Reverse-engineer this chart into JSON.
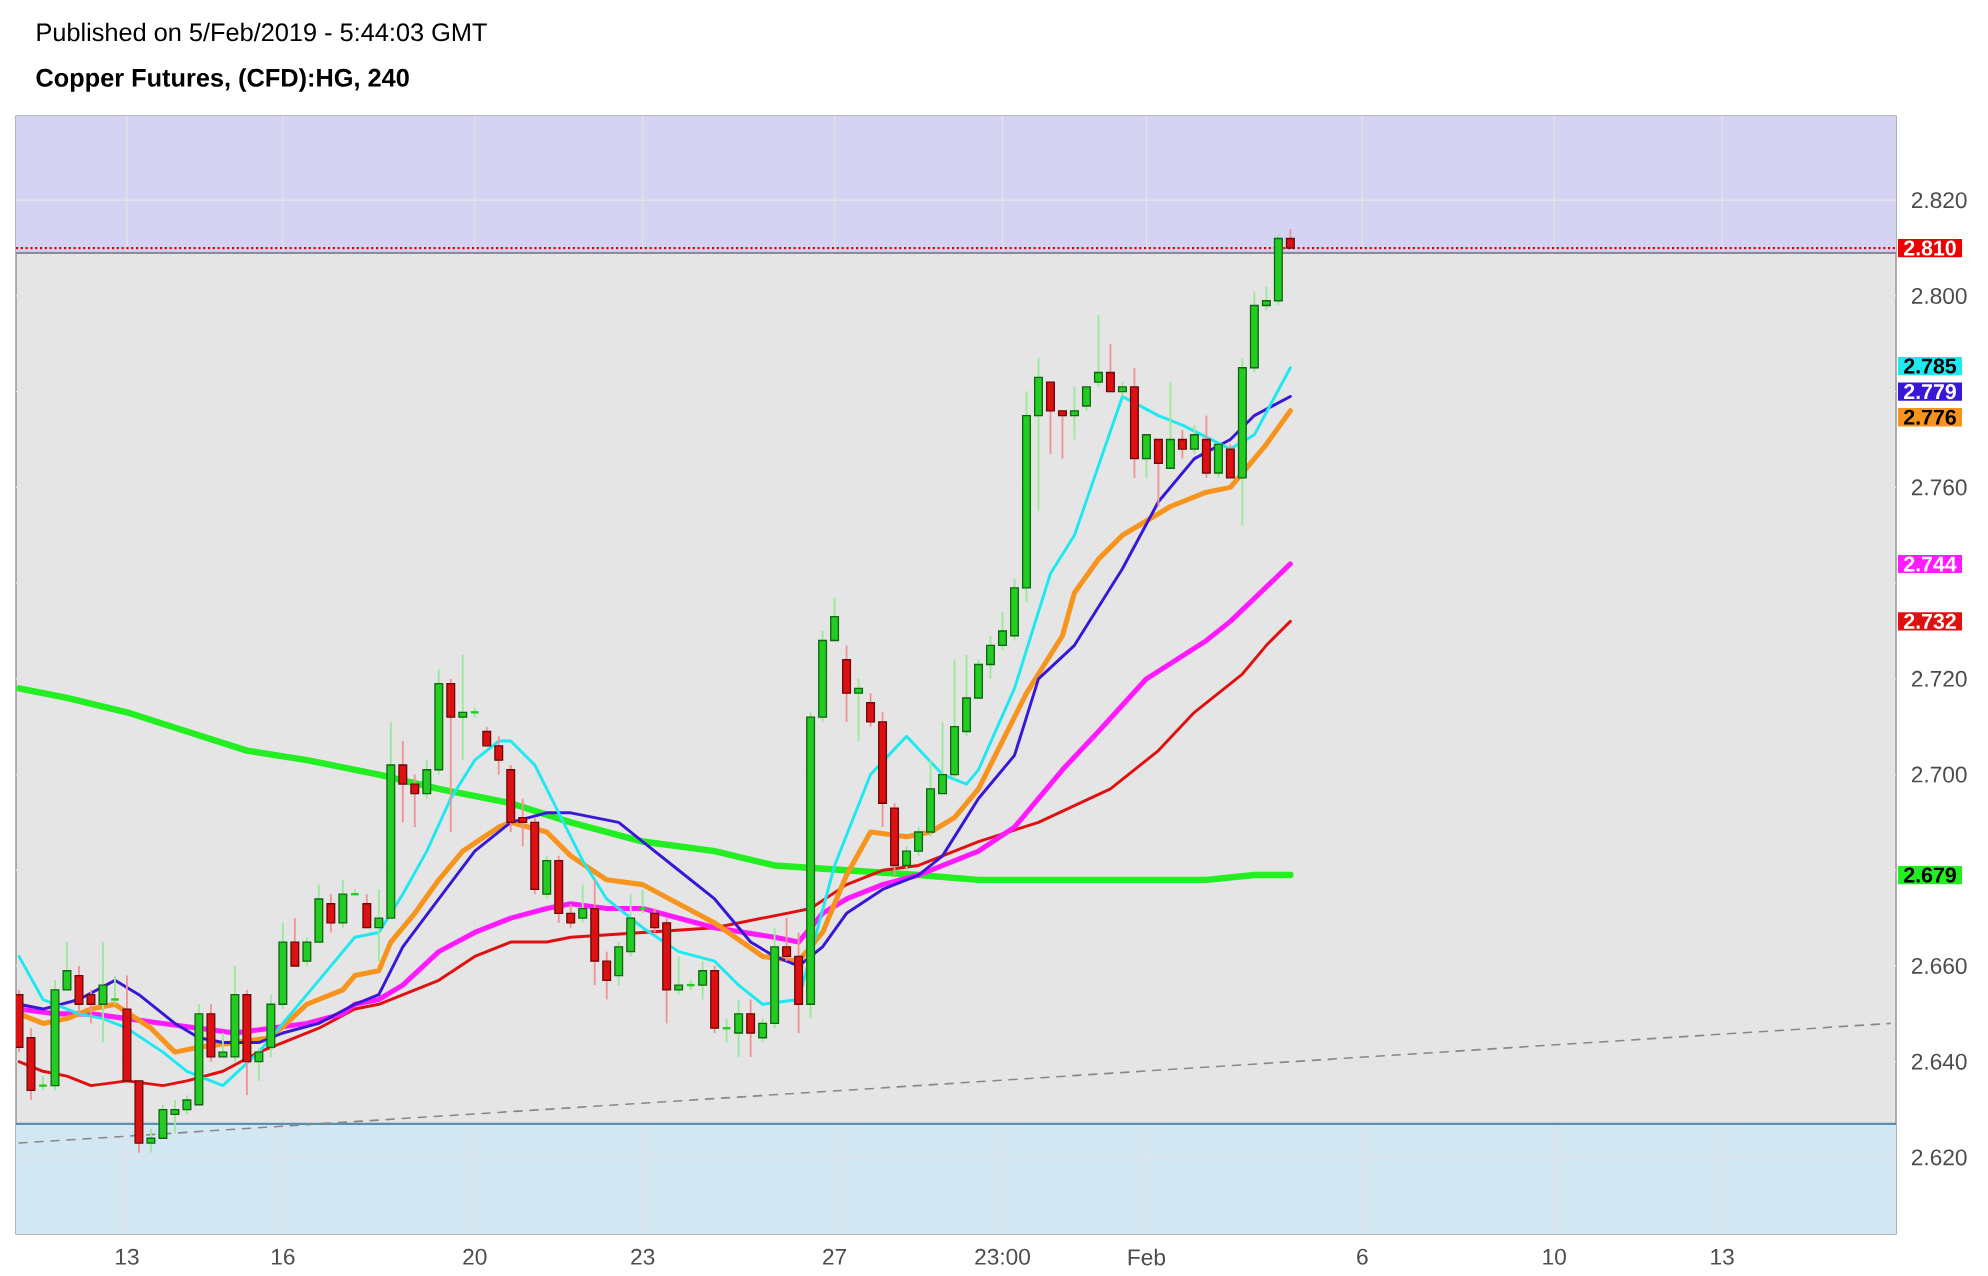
{
  "chart_data": {
    "type": "candlestick",
    "title": "Copper Futures, (CFD):HG, 240",
    "subtitle": "Published on 5/Feb/2019 - 5:44:03 GMT",
    "categories": [
      null,
      null,
      null,
      null,
      null,
      null,
      null,
      null,
      null,
      "13",
      null,
      null,
      null,
      null,
      null,
      null,
      null,
      null,
      null,
      null,
      null,
      null,
      "16",
      null,
      null,
      null,
      null,
      null,
      null,
      null,
      null,
      null,
      null,
      null,
      null,
      null,
      null,
      null,
      "20",
      null,
      null,
      null,
      null,
      null,
      null,
      null,
      null,
      null,
      null,
      null,
      null,
      null,
      "23",
      null,
      null,
      null,
      null,
      null,
      null,
      null,
      null,
      null,
      null,
      null,
      null,
      null,
      null,
      null,
      "27",
      null,
      null,
      null,
      null,
      null,
      null,
      null,
      null,
      null,
      null,
      null,
      null,
      null,
      "23:00",
      null,
      null,
      null,
      null,
      null,
      null,
      null,
      null,
      null,
      null,
      null,
      "Feb",
      null,
      null,
      null,
      null,
      null,
      null,
      null,
      null,
      null,
      null,
      null,
      null,
      null,
      null,
      null,
      null,
      null,
      "6",
      null,
      null,
      null,
      null,
      null,
      null,
      null,
      null,
      null,
      null,
      null,
      null,
      null,
      null,
      null,
      "10",
      null,
      null,
      null,
      null,
      null,
      null,
      null,
      null,
      null,
      null,
      null,
      null,
      null,
      "13",
      null,
      null,
      null,
      null,
      null,
      null,
      null,
      null,
      null,
      null,
      null,
      null,
      null,
      null
    ],
    "ohlc": [
      [
        2.654,
        2.655,
        2.642,
        2.643
      ],
      [
        2.645,
        2.647,
        2.632,
        2.634
      ],
      [
        2.635,
        2.637,
        2.634,
        2.635
      ],
      [
        2.635,
        2.657,
        2.634,
        2.655
      ],
      [
        2.655,
        2.665,
        2.655,
        2.659
      ],
      [
        2.658,
        2.66,
        2.65,
        2.652
      ],
      [
        2.654,
        2.655,
        2.648,
        2.652
      ],
      [
        2.652,
        2.665,
        2.644,
        2.656
      ],
      [
        2.653,
        2.658,
        2.652,
        2.653
      ],
      [
        2.651,
        2.658,
        2.636,
        2.636
      ],
      [
        2.636,
        2.636,
        2.621,
        2.623
      ],
      [
        2.623,
        2.626,
        2.621,
        2.624
      ],
      [
        2.624,
        2.631,
        2.624,
        2.63
      ],
      [
        2.629,
        2.632,
        2.625,
        2.63
      ],
      [
        2.63,
        2.633,
        2.629,
        2.632
      ],
      [
        2.631,
        2.652,
        2.631,
        2.65
      ],
      [
        2.65,
        2.652,
        2.64,
        2.641
      ],
      [
        2.641,
        2.646,
        2.641,
        2.642
      ],
      [
        2.641,
        2.66,
        2.64,
        2.654
      ],
      [
        2.654,
        2.655,
        2.633,
        2.64
      ],
      [
        2.64,
        2.643,
        2.636,
        2.642
      ],
      [
        2.643,
        2.654,
        2.641,
        2.652
      ],
      [
        2.652,
        2.669,
        2.651,
        2.665
      ],
      [
        2.665,
        2.67,
        2.66,
        2.66
      ],
      [
        2.661,
        2.666,
        2.66,
        2.665
      ],
      [
        2.665,
        2.677,
        2.665,
        2.674
      ],
      [
        2.673,
        2.675,
        2.667,
        2.669
      ],
      [
        2.669,
        2.678,
        2.668,
        2.675
      ],
      [
        2.675,
        2.676,
        2.675,
        2.675
      ],
      [
        2.673,
        2.675,
        2.668,
        2.668
      ],
      [
        2.668,
        2.676,
        2.661,
        2.67
      ],
      [
        2.67,
        2.711,
        2.67,
        2.702
      ],
      [
        2.702,
        2.707,
        2.69,
        2.698
      ],
      [
        2.698,
        2.7,
        2.689,
        2.696
      ],
      [
        2.696,
        2.703,
        2.695,
        2.701
      ],
      [
        2.701,
        2.722,
        2.7,
        2.719
      ],
      [
        2.719,
        2.72,
        2.688,
        2.712
      ],
      [
        2.712,
        2.725,
        2.703,
        2.713
      ],
      [
        2.713,
        2.714,
        2.712,
        2.713
      ],
      [
        2.709,
        2.71,
        2.706,
        2.706
      ],
      [
        2.706,
        2.708,
        2.7,
        2.703
      ],
      [
        2.701,
        2.702,
        2.688,
        2.69
      ],
      [
        2.691,
        2.695,
        2.685,
        2.69
      ],
      [
        2.69,
        2.691,
        2.675,
        2.676
      ],
      [
        2.675,
        2.683,
        2.674,
        2.682
      ],
      [
        2.682,
        2.683,
        2.669,
        2.671
      ],
      [
        2.671,
        2.673,
        2.668,
        2.669
      ],
      [
        2.67,
        2.677,
        2.669,
        2.672
      ],
      [
        2.672,
        2.678,
        2.656,
        2.661
      ],
      [
        2.661,
        2.663,
        2.653,
        2.657
      ],
      [
        2.658,
        2.665,
        2.656,
        2.664
      ],
      [
        2.663,
        2.675,
        2.662,
        2.67
      ],
      [
        2.672,
        2.676,
        2.671,
        2.672
      ],
      [
        2.671,
        2.672,
        2.667,
        2.668
      ],
      [
        2.669,
        2.67,
        2.648,
        2.655
      ],
      [
        2.655,
        2.662,
        2.654,
        2.656
      ],
      [
        2.656,
        2.657,
        2.655,
        2.656
      ],
      [
        2.656,
        2.661,
        2.653,
        2.659
      ],
      [
        2.659,
        2.66,
        2.646,
        2.647
      ],
      [
        2.647,
        2.649,
        2.644,
        2.647
      ],
      [
        2.646,
        2.653,
        2.641,
        2.65
      ],
      [
        2.65,
        2.653,
        2.641,
        2.646
      ],
      [
        2.645,
        2.649,
        2.644,
        2.648
      ],
      [
        2.648,
        2.668,
        2.647,
        2.664
      ],
      [
        2.664,
        2.67,
        2.661,
        2.662
      ],
      [
        2.662,
        2.667,
        2.646,
        2.652
      ],
      [
        2.652,
        2.713,
        2.649,
        2.712
      ],
      [
        2.712,
        2.73,
        2.711,
        2.728
      ],
      [
        2.728,
        2.737,
        2.728,
        2.733
      ],
      [
        2.724,
        2.727,
        2.711,
        2.717
      ],
      [
        2.717,
        2.72,
        2.707,
        2.718
      ],
      [
        2.715,
        2.717,
        2.71,
        2.711
      ],
      [
        2.711,
        2.713,
        2.689,
        2.694
      ],
      [
        2.693,
        2.694,
        2.679,
        2.681
      ],
      [
        2.681,
        2.685,
        2.68,
        2.684
      ],
      [
        2.684,
        2.689,
        2.683,
        2.688
      ],
      [
        2.688,
        2.703,
        2.687,
        2.697
      ],
      [
        2.696,
        2.711,
        2.696,
        2.7
      ],
      [
        2.7,
        2.724,
        2.699,
        2.71
      ],
      [
        2.709,
        2.725,
        2.708,
        2.716
      ],
      [
        2.716,
        2.724,
        2.716,
        2.723
      ],
      [
        2.723,
        2.729,
        2.72,
        2.727
      ],
      [
        2.727,
        2.734,
        2.726,
        2.73
      ],
      [
        2.729,
        2.741,
        2.728,
        2.739
      ],
      [
        2.739,
        2.78,
        2.736,
        2.775
      ],
      [
        2.775,
        2.787,
        2.755,
        2.783
      ],
      [
        2.782,
        2.782,
        2.767,
        2.776
      ],
      [
        2.776,
        2.776,
        2.766,
        2.775
      ],
      [
        2.775,
        2.781,
        2.77,
        2.776
      ],
      [
        2.777,
        2.781,
        2.776,
        2.781
      ],
      [
        2.782,
        2.796,
        2.781,
        2.784
      ],
      [
        2.784,
        2.79,
        2.78,
        2.78
      ],
      [
        2.78,
        2.782,
        2.779,
        2.781
      ],
      [
        2.781,
        2.785,
        2.762,
        2.766
      ],
      [
        2.766,
        2.771,
        2.762,
        2.771
      ],
      [
        2.77,
        2.77,
        2.756,
        2.765
      ],
      [
        2.764,
        2.782,
        2.764,
        2.77
      ],
      [
        2.77,
        2.772,
        2.766,
        2.768
      ],
      [
        2.768,
        2.773,
        2.767,
        2.771
      ],
      [
        2.77,
        2.775,
        2.762,
        2.763
      ],
      [
        2.763,
        2.769,
        2.762,
        2.769
      ],
      [
        2.768,
        2.769,
        2.762,
        2.762
      ],
      [
        2.762,
        2.787,
        2.752,
        2.785
      ],
      [
        2.785,
        2.801,
        2.784,
        2.798
      ],
      [
        2.798,
        2.802,
        2.797,
        2.799
      ],
      [
        2.799,
        2.813,
        2.798,
        2.812
      ],
      [
        2.812,
        2.814,
        2.81,
        2.81
      ],
      null,
      null,
      null,
      null,
      null,
      null,
      null,
      null,
      null,
      null,
      null,
      null,
      null,
      null,
      null,
      null,
      null,
      null,
      null,
      null,
      null,
      null,
      null,
      null,
      null,
      null,
      null,
      null,
      null,
      null,
      null,
      null,
      null,
      null,
      null,
      null,
      null,
      null,
      null,
      null,
      null,
      null,
      null,
      null,
      null,
      null,
      null,
      null,
      null,
      null
    ],
    "colors": [
      "#dd1111",
      "#dd1111",
      "#22cc22",
      "#22cc22",
      "#22cc22",
      "#dd1111",
      "#dd1111",
      "#22cc22",
      "#22cc22",
      "#dd1111",
      "#dd1111",
      "#22cc22",
      "#22cc22",
      "#22cc22",
      "#22cc22",
      "#22cc22",
      "#dd1111",
      "#22cc22",
      "#22cc22",
      "#dd1111",
      "#22cc22",
      "#22cc22",
      "#22cc22",
      "#dd1111",
      "#22cc22",
      "#22cc22",
      "#dd1111",
      "#22cc22",
      "#22cc22",
      "#dd1111",
      "#22cc22",
      "#22cc22",
      "#dd1111",
      "#dd1111",
      "#22cc22",
      "#22cc22",
      "#dd1111",
      "#22cc22",
      "#22cc22",
      "#dd1111",
      "#dd1111",
      "#dd1111",
      "#dd1111",
      "#dd1111",
      "#22cc22",
      "#dd1111",
      "#dd1111",
      "#22cc22",
      "#dd1111",
      "#dd1111",
      "#22cc22",
      "#22cc22",
      "#22cc22",
      "#dd1111",
      "#dd1111",
      "#22cc22",
      "#22cc22",
      "#22cc22",
      "#dd1111",
      "#22cc22",
      "#22cc22",
      "#dd1111",
      "#22cc22",
      "#22cc22",
      "#dd1111",
      "#dd1111",
      "#22cc22",
      "#22cc22",
      "#22cc22",
      "#dd1111",
      "#22cc22",
      "#dd1111",
      "#dd1111",
      "#dd1111",
      "#22cc22",
      "#22cc22",
      "#22cc22",
      "#22cc22",
      "#22cc22",
      "#22cc22",
      "#22cc22",
      "#22cc22",
      "#22cc22",
      "#22cc22",
      "#22cc22",
      "#22cc22",
      "#dd1111",
      "#dd1111",
      "#22cc22",
      "#22cc22",
      "#22cc22",
      "#dd1111",
      "#22cc22",
      "#dd1111",
      "#22cc22",
      "#dd1111",
      "#22cc22",
      "#dd1111",
      "#22cc22",
      "#dd1111",
      "#22cc22",
      "#dd1111",
      "#22cc22",
      "#22cc22",
      "#22cc22",
      "#22cc22",
      "#dd1111",
      null,
      null,
      null,
      null,
      null,
      null,
      null,
      null,
      null,
      null,
      null,
      null,
      null,
      null,
      null,
      null,
      null,
      null,
      null,
      null,
      null,
      null,
      null,
      null,
      null,
      null,
      null,
      null,
      null,
      null,
      null,
      null,
      null,
      null,
      null,
      null,
      null,
      null,
      null,
      null,
      null,
      null,
      null,
      null,
      null,
      null,
      null,
      null,
      null,
      null
    ],
    "series": [
      {
        "type": "line",
        "color": "#888888",
        "line_style": "dashed",
        "values": [
          2.623,
          null,
          null,
          null,
          null,
          null,
          null,
          null,
          null,
          null,
          null,
          null,
          null,
          null,
          null,
          null,
          null,
          null,
          null,
          null,
          null,
          null,
          null,
          null,
          null,
          null,
          null,
          null,
          null,
          null,
          null,
          null,
          null,
          null,
          null,
          null,
          null,
          null,
          null,
          null,
          null,
          null,
          null,
          null,
          null,
          null,
          null,
          null,
          null,
          null,
          null,
          null,
          null,
          null,
          null,
          null,
          null,
          null,
          null,
          null,
          null,
          null,
          null,
          null,
          null,
          null,
          null,
          null,
          null,
          null,
          null,
          null,
          null,
          null,
          null,
          null,
          null,
          null,
          null,
          null,
          null,
          null,
          null,
          null,
          null,
          null,
          null,
          null,
          null,
          null,
          null,
          null,
          null,
          null,
          null,
          null,
          null,
          null,
          null,
          null,
          null,
          null,
          null,
          null,
          null,
          null,
          null,
          null,
          null,
          null,
          null,
          null,
          null,
          null,
          null,
          null,
          null,
          null,
          null,
          null,
          null,
          null,
          null,
          null,
          null,
          null,
          null,
          null,
          null,
          null,
          null,
          null,
          null,
          null,
          null,
          null,
          null,
          null,
          null,
          null,
          null,
          null,
          null,
          null,
          null,
          null,
          null,
          null,
          null,
          null,
          null,
          null,
          null,
          null,
          null,
          null,
          2.648
        ]
      },
      {
        "type": "line",
        "color": "#22ee22",
        "values": [
          2.718,
          null,
          null,
          null,
          2.716,
          null,
          null,
          null,
          null,
          2.713,
          null,
          null,
          null,
          null,
          2.709,
          null,
          null,
          null,
          null,
          2.705,
          null,
          null,
          null,
          null,
          2.703,
          null,
          null,
          null,
          null,
          null,
          2.7,
          null,
          null,
          null,
          null,
          2.697,
          null,
          null,
          null,
          null,
          null,
          2.694,
          null,
          null,
          null,
          null,
          2.69,
          null,
          null,
          null,
          null,
          null,
          2.686,
          null,
          null,
          null,
          null,
          null,
          2.684,
          null,
          null,
          null,
          null,
          2.681,
          null,
          null,
          null,
          null,
          null,
          2.68,
          null,
          null,
          null,
          null,
          null,
          2.679,
          null,
          null,
          null,
          null,
          2.678,
          null,
          null,
          null,
          null,
          null,
          null,
          2.678,
          null,
          null,
          null,
          null,
          null,
          null,
          2.678,
          null,
          null,
          null,
          null,
          2.678,
          null,
          null,
          null,
          2.679,
          null,
          null,
          2.679,
          null,
          null,
          null,
          null,
          null,
          null,
          null,
          null,
          null,
          null,
          null,
          null,
          null,
          null,
          null,
          null,
          null,
          null,
          null,
          null,
          null,
          null,
          null,
          null,
          null,
          null,
          null,
          null,
          null,
          null,
          null,
          null,
          null,
          null,
          null,
          null,
          null,
          null,
          null,
          null,
          null,
          null,
          null,
          null,
          null,
          null,
          null,
          null,
          null,
          null
        ]
      },
      {
        "type": "line",
        "color": "#e01010",
        "values": [
          2.64,
          null,
          2.638,
          null,
          2.637,
          null,
          2.635,
          null,
          null,
          2.636,
          null,
          null,
          2.635,
          null,
          2.636,
          null,
          null,
          2.638,
          null,
          null,
          2.642,
          null,
          2.644,
          null,
          null,
          2.647,
          null,
          null,
          2.651,
          null,
          2.652,
          null,
          null,
          null,
          null,
          2.657,
          null,
          null,
          2.662,
          null,
          null,
          2.665,
          null,
          null,
          2.665,
          null,
          2.666,
          null,
          null,
          null,
          null,
          null,
          2.667,
          null,
          null,
          null,
          null,
          null,
          2.668,
          null,
          null,
          null,
          null,
          null,
          2.671,
          null,
          2.672,
          null,
          null,
          2.677,
          null,
          null,
          2.68,
          null,
          null,
          2.681,
          null,
          null,
          null,
          null,
          2.686,
          null,
          null,
          null,
          null,
          2.69,
          null,
          null,
          null,
          null,
          null,
          2.697,
          null,
          null,
          null,
          2.705,
          null,
          null,
          2.713,
          null,
          2.717,
          null,
          2.721,
          null,
          2.727,
          null,
          2.732,
          null,
          null,
          null,
          null,
          null,
          null,
          null,
          null,
          null,
          null,
          null,
          null,
          null,
          null,
          null,
          null,
          null,
          null,
          null,
          null,
          null,
          null,
          null,
          null,
          null,
          null,
          null,
          null,
          null,
          null,
          null,
          null,
          null,
          null,
          null,
          null,
          null,
          null,
          null,
          null,
          null,
          null,
          null,
          null,
          null,
          null,
          null,
          null,
          null,
          null
        ]
      },
      {
        "type": "line",
        "color": "#ff1aff",
        "values": [
          2.651,
          null,
          null,
          2.65,
          null,
          null,
          2.65,
          null,
          null,
          2.649,
          null,
          null,
          2.648,
          null,
          null,
          2.647,
          null,
          null,
          2.646,
          null,
          null,
          2.647,
          null,
          null,
          2.648,
          null,
          null,
          2.65,
          2.652,
          null,
          2.653,
          null,
          2.656,
          null,
          null,
          2.663,
          null,
          null,
          2.667,
          null,
          null,
          2.67,
          null,
          null,
          2.672,
          null,
          2.673,
          null,
          null,
          2.672,
          null,
          null,
          2.672,
          null,
          null,
          null,
          null,
          null,
          2.668,
          null,
          null,
          null,
          null,
          2.666,
          null,
          2.665,
          null,
          2.671,
          null,
          2.674,
          null,
          null,
          2.677,
          null,
          null,
          2.679,
          null,
          null,
          null,
          null,
          2.684,
          null,
          null,
          2.689,
          null,
          null,
          null,
          2.701,
          null,
          null,
          2.709,
          null,
          null,
          null,
          2.72,
          null,
          null,
          null,
          null,
          2.728,
          null,
          2.732,
          null,
          null,
          null,
          null,
          2.744,
          null,
          null,
          null,
          null,
          null,
          null,
          null,
          null,
          null,
          null,
          null,
          null,
          null,
          null,
          null,
          null,
          null,
          null,
          null,
          null,
          null,
          null,
          null,
          null,
          null,
          null,
          null,
          null,
          null,
          null,
          null,
          null,
          null,
          null,
          null,
          null,
          null,
          null,
          null,
          null,
          null,
          null,
          null,
          null,
          null,
          null,
          null,
          null,
          null,
          null
        ]
      },
      {
        "type": "line",
        "color": "#f7941d",
        "values": [
          2.65,
          null,
          2.648,
          null,
          2.649,
          null,
          2.651,
          null,
          2.652,
          null,
          null,
          2.647,
          null,
          2.642,
          null,
          2.643,
          null,
          null,
          2.644,
          null,
          null,
          2.645,
          null,
          null,
          2.652,
          null,
          null,
          2.655,
          2.658,
          null,
          2.659,
          2.665,
          null,
          2.671,
          null,
          2.678,
          null,
          2.684,
          null,
          null,
          2.689,
          2.69,
          null,
          null,
          2.688,
          null,
          2.683,
          null,
          null,
          2.678,
          null,
          null,
          2.677,
          null,
          null,
          null,
          null,
          null,
          2.669,
          null,
          null,
          null,
          2.662,
          null,
          null,
          2.661,
          null,
          2.667,
          null,
          2.679,
          null,
          2.688,
          null,
          null,
          2.687,
          null,
          2.688,
          null,
          2.691,
          null,
          2.697,
          null,
          null,
          null,
          2.717,
          null,
          null,
          2.729,
          2.738,
          null,
          2.745,
          null,
          2.75,
          null,
          null,
          null,
          2.756,
          null,
          null,
          2.759,
          null,
          2.76,
          null,
          null,
          2.769,
          null,
          2.776,
          null,
          null,
          null,
          null,
          null,
          null,
          null,
          null,
          null,
          null,
          null,
          null,
          null,
          null,
          null,
          null,
          null,
          null,
          null,
          null,
          null,
          null,
          null,
          null,
          null,
          null,
          null,
          null,
          null,
          null,
          null,
          null,
          null,
          null,
          null,
          null,
          null,
          null,
          null,
          null,
          null,
          null,
          null,
          null,
          null,
          null,
          null,
          null,
          null,
          null
        ]
      },
      {
        "type": "line",
        "color": "#3a16d6",
        "values": [
          2.652,
          null,
          2.651,
          null,
          null,
          2.653,
          null,
          null,
          2.657,
          null,
          2.654,
          null,
          null,
          2.648,
          null,
          2.645,
          null,
          2.644,
          null,
          null,
          2.644,
          null,
          2.646,
          null,
          null,
          2.648,
          null,
          null,
          2.652,
          null,
          2.654,
          null,
          2.664,
          null,
          null,
          2.674,
          null,
          null,
          2.684,
          null,
          null,
          2.69,
          null,
          null,
          2.692,
          null,
          2.692,
          null,
          null,
          null,
          2.69,
          null,
          2.686,
          null,
          null,
          2.68,
          null,
          null,
          2.674,
          null,
          null,
          2.665,
          null,
          2.662,
          null,
          2.66,
          null,
          2.664,
          null,
          2.671,
          null,
          null,
          2.676,
          null,
          null,
          2.679,
          null,
          2.683,
          null,
          null,
          2.695,
          null,
          null,
          2.704,
          null,
          2.72,
          null,
          null,
          2.727,
          null,
          null,
          null,
          2.743,
          null,
          null,
          2.757,
          null,
          null,
          2.766,
          null,
          null,
          2.77,
          null,
          2.775,
          null,
          null,
          2.779,
          null,
          null,
          null,
          null,
          null,
          null,
          null,
          null,
          null,
          null,
          null,
          null,
          null,
          null,
          null,
          null,
          null,
          null,
          null,
          null,
          null,
          null,
          null,
          null,
          null,
          null,
          null,
          null,
          null,
          null,
          null,
          null,
          null,
          null,
          null,
          null,
          null,
          null,
          null,
          null,
          null,
          null,
          null,
          null,
          null,
          null,
          null,
          null,
          null,
          null
        ]
      },
      {
        "type": "line",
        "color": "#1ee8f0",
        "values": [
          2.662,
          null,
          2.653,
          null,
          null,
          2.65,
          null,
          2.649,
          null,
          2.647,
          null,
          null,
          2.642,
          null,
          2.638,
          null,
          null,
          2.635,
          null,
          null,
          2.642,
          null,
          2.648,
          null,
          null,
          2.657,
          null,
          null,
          2.666,
          null,
          2.667,
          null,
          2.675,
          null,
          2.684,
          null,
          2.695,
          null,
          2.703,
          null,
          2.707,
          2.707,
          null,
          2.702,
          null,
          2.692,
          null,
          2.682,
          null,
          2.674,
          null,
          null,
          2.668,
          null,
          null,
          2.663,
          null,
          null,
          2.661,
          null,
          2.656,
          null,
          2.652,
          null,
          null,
          2.653,
          null,
          null,
          2.681,
          null,
          null,
          2.7,
          null,
          null,
          2.708,
          null,
          null,
          2.7,
          null,
          2.698,
          2.701,
          null,
          null,
          2.718,
          null,
          null,
          2.742,
          null,
          2.75,
          null,
          null,
          null,
          2.779,
          null,
          null,
          2.775,
          null,
          2.773,
          null,
          null,
          null,
          2.768,
          null,
          2.771,
          null,
          null,
          2.785,
          null,
          null,
          null,
          null,
          null,
          null,
          null,
          null,
          null,
          null,
          null,
          null,
          null,
          null,
          null,
          null,
          null,
          null,
          null,
          null,
          null,
          null,
          null,
          null,
          null,
          null,
          null,
          null,
          null,
          null,
          null,
          null,
          null,
          null,
          null,
          null,
          null,
          null,
          null,
          null,
          null,
          null,
          null,
          null,
          null,
          null,
          null,
          null,
          null,
          null
        ]
      }
    ],
    "annotations": [
      "2.679",
      "2.732",
      "2.744",
      "2.776",
      "2.779",
      "2.785"
    ],
    "ylim": [
      2.604,
      2.8376
    ],
    "yticks": [
      {
        "value": 2.62,
        "label": "2.620"
      },
      {
        "value": 2.64,
        "label": "2.640"
      },
      {
        "value": 2.66,
        "label": "2.660"
      },
      {
        "value": 2.68,
        "label": null
      },
      {
        "value": 2.7,
        "label": "2.700"
      },
      {
        "value": 2.72,
        "label": "2.720"
      },
      {
        "value": 2.74,
        "label": null
      },
      {
        "value": 2.76,
        "label": "2.760"
      },
      {
        "value": 2.78,
        "label": null
      },
      {
        "value": 2.8,
        "label": "2.800"
      },
      {
        "value": 2.82,
        "label": "2.820"
      }
    ],
    "grid": true,
    "bands": [
      {
        "axis": "y",
        "from": 2.809,
        "to": 2.8376,
        "color": "#d4d3f4"
      },
      {
        "axis": "y",
        "from": 2.604,
        "to": 2.627,
        "color": "#d3e7f3"
      }
    ],
    "ref_lines": [
      {
        "axis": "y",
        "value": 2.809,
        "color": "#8a8a99"
      },
      {
        "axis": "y",
        "value": 2.627,
        "color": "#5b8fb0"
      },
      {
        "axis": "y",
        "value": 2.81,
        "label": "2.810",
        "color": "#ee0000",
        "line_style": "dotted"
      }
    ]
  }
}
